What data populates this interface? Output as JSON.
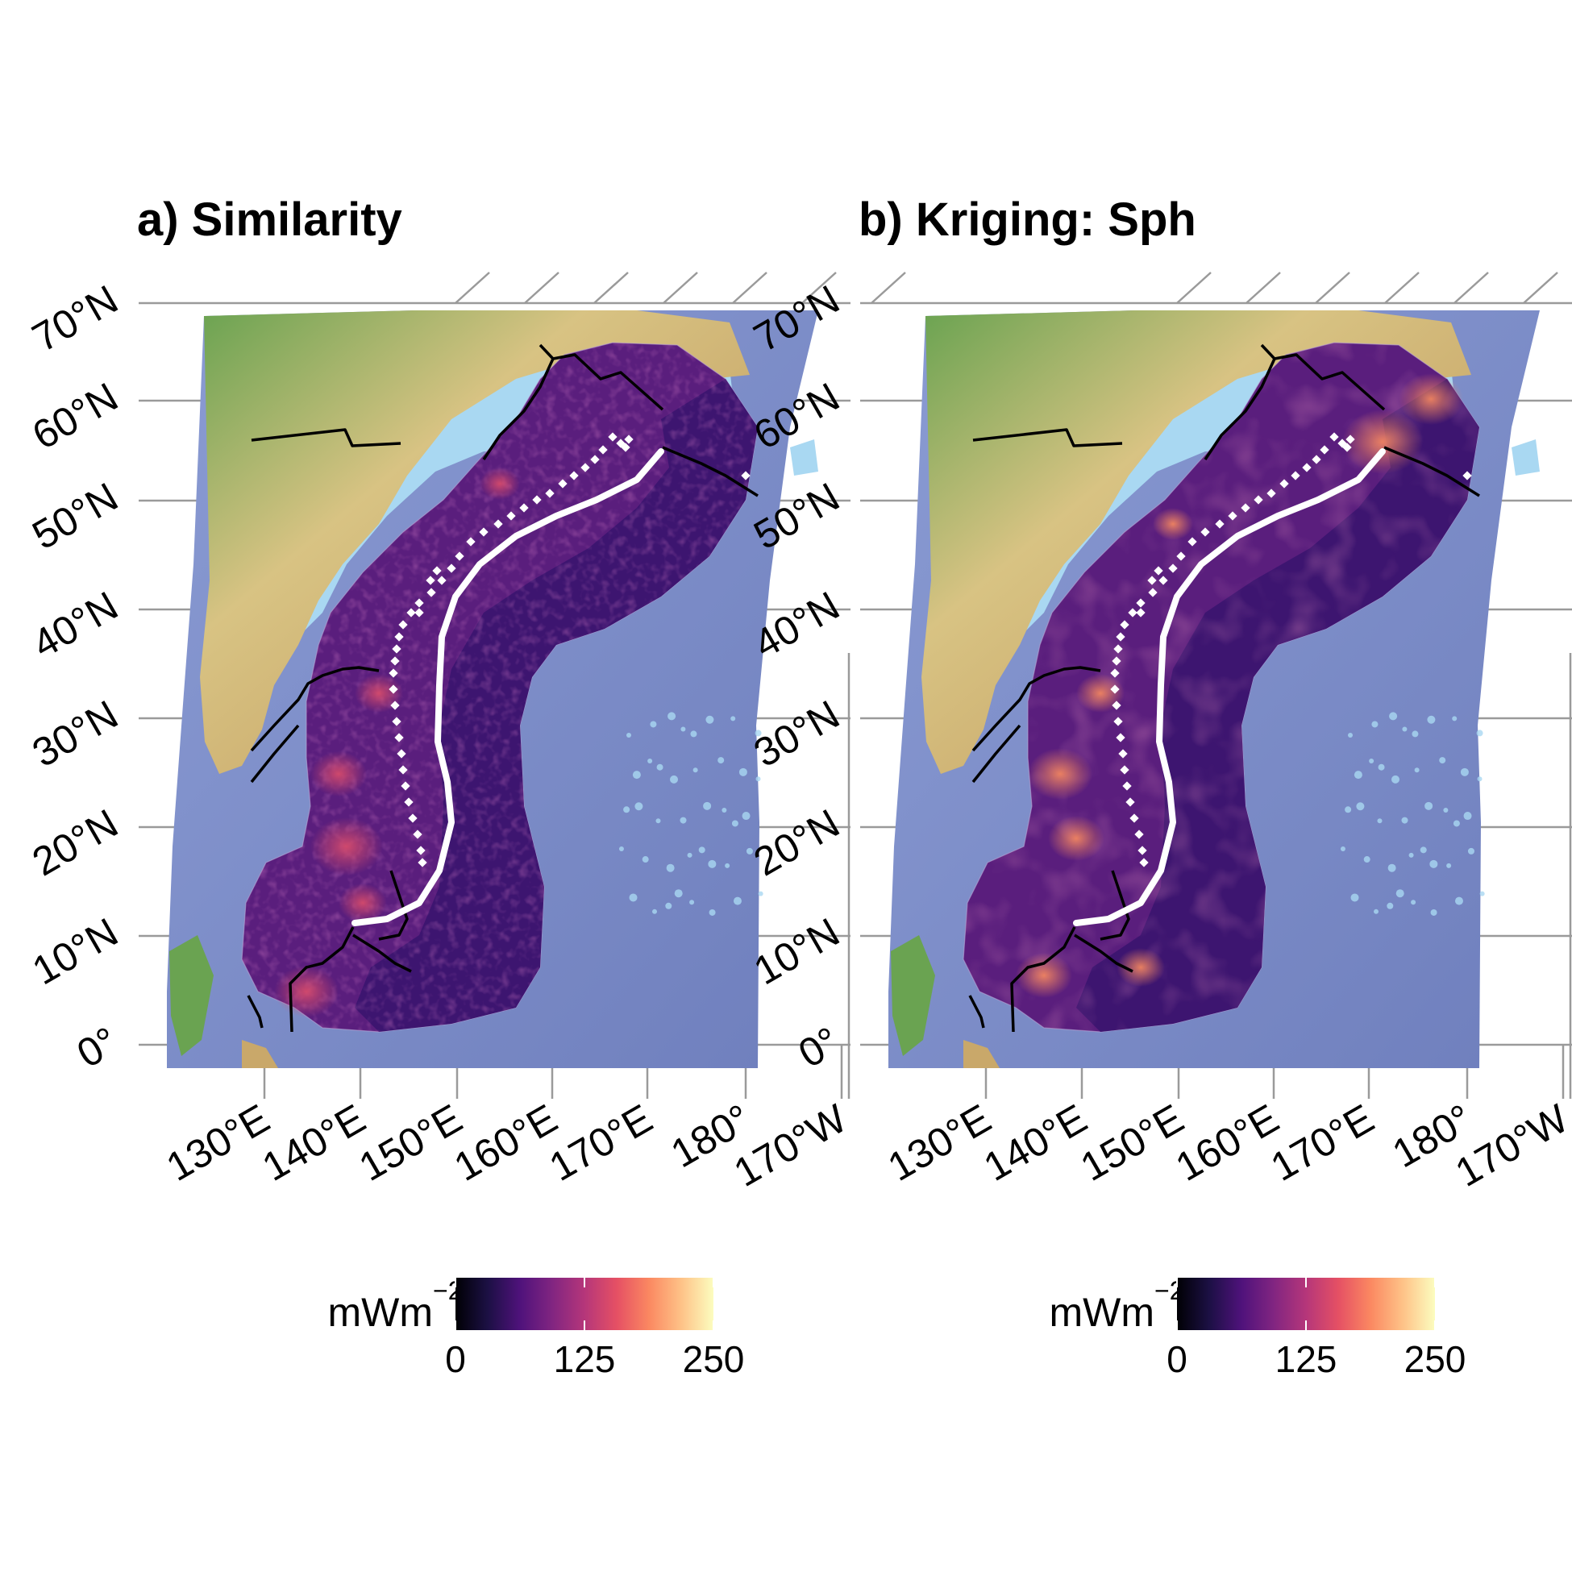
{
  "panels": [
    {
      "id": "a",
      "title": "a) Similarity",
      "lat_labels": [
        "70°N",
        "60°N",
        "50°N",
        "40°N",
        "30°N",
        "20°N",
        "10°N",
        "0°"
      ],
      "lon_labels": [
        "130°E",
        "140°E",
        "150°E",
        "160°E",
        "170°E",
        "180°",
        "170°W"
      ],
      "legend": {
        "title": "mWm",
        "title_sup": "−2",
        "ticks": [
          "0",
          "125",
          "250"
        ],
        "scale_range": [
          0,
          250
        ],
        "colors": [
          "#000004",
          "#1c1044",
          "#4f127b",
          "#812581",
          "#b5367a",
          "#e55064",
          "#fb8861",
          "#fec287",
          "#fcfdbf"
        ]
      }
    },
    {
      "id": "b",
      "title": "b) Kriging: Sph",
      "lat_labels": [
        "70°N",
        "60°N",
        "50°N",
        "40°N",
        "30°N",
        "20°N",
        "10°N",
        "0°"
      ],
      "lon_labels": [
        "130°E",
        "140°E",
        "150°E",
        "160°E",
        "170°E",
        "180°",
        "170°W"
      ],
      "legend": {
        "title": "mWm",
        "title_sup": "−2",
        "ticks": [
          "0",
          "125",
          "250"
        ],
        "scale_range": [
          0,
          250
        ],
        "colors": [
          "#000004",
          "#1c1044",
          "#4f127b",
          "#812581",
          "#b5367a",
          "#e55064",
          "#fb8861",
          "#fec287",
          "#fcfdbf"
        ]
      }
    }
  ],
  "colors": {
    "ocean": "#7d8cc6",
    "shallow_sea": "#a9d8f2",
    "land_low": "#5f9e4a",
    "land_mid": "#d6c07f",
    "land_high": "#c9a86a",
    "grid": "#9a9a9a",
    "buffer": "#3d1570",
    "trench": "#ffffff",
    "boundary": "#000000"
  }
}
